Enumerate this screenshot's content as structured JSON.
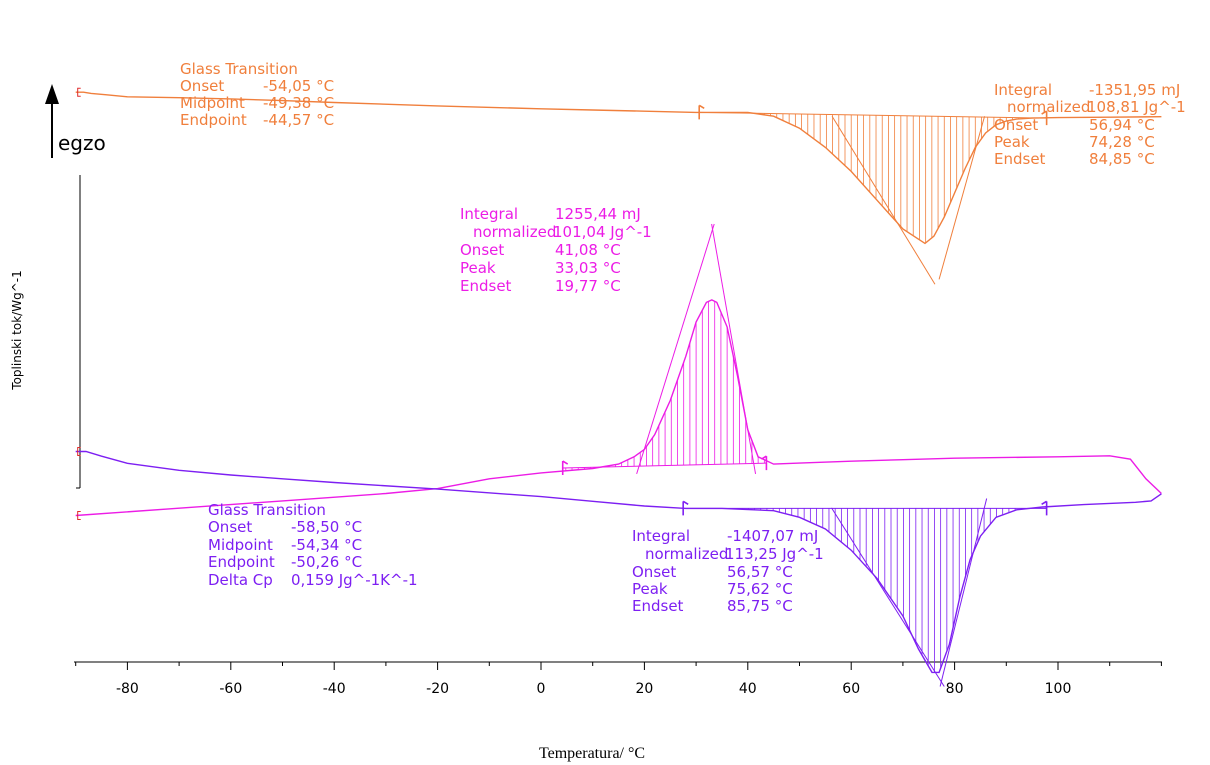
{
  "chart_data": {
    "type": "line",
    "xlabel": "Temperatura/ °C",
    "ylabel": "Toplinski tok/Wg^-1",
    "exo_label": "egzo",
    "xlim": [
      -90,
      120
    ],
    "x_ticks": [
      -80,
      -60,
      -40,
      -20,
      0,
      20,
      40,
      60,
      80,
      100
    ],
    "grid": false,
    "colors": {
      "top": "#f07f3c",
      "middle": "#ec1ce6",
      "bottom": "#7d1ff2"
    },
    "series": [
      {
        "key": "top",
        "points": [
          [
            -90,
            6.0
          ],
          [
            -88.5,
            6.0
          ],
          [
            -87,
            5.75
          ],
          [
            -84,
            5.45
          ],
          [
            -80,
            5.05
          ],
          [
            -70,
            4.85
          ],
          [
            -60,
            4.6
          ],
          [
            -50,
            4.25
          ],
          [
            -40,
            3.85
          ],
          [
            -20,
            3.15
          ],
          [
            0,
            2.55
          ],
          [
            10,
            2.3
          ],
          [
            20,
            2.05
          ],
          [
            30,
            1.8
          ],
          [
            40,
            1.8
          ],
          [
            45,
            1.0
          ],
          [
            50,
            -1.5
          ],
          [
            55,
            -5.5
          ],
          [
            60,
            -10.5
          ],
          [
            65,
            -16.5
          ],
          [
            70,
            -22.5
          ],
          [
            74.28,
            -25.5
          ],
          [
            76,
            -24
          ],
          [
            78,
            -20
          ],
          [
            80,
            -15
          ],
          [
            82,
            -10
          ],
          [
            84,
            -5.5
          ],
          [
            86,
            -2.5
          ],
          [
            88,
            -0.8
          ],
          [
            90,
            0
          ],
          [
            92,
            0.4
          ],
          [
            95,
            0.6
          ],
          [
            100,
            0.7
          ],
          [
            110,
            0.8
          ],
          [
            120,
            0.9
          ]
        ],
        "baseline": [
          [
            30.6,
            1.8
          ],
          [
            97.8,
            0.6
          ]
        ],
        "tangents": [
          [
            [
              56.3,
              1.0
            ],
            [
              76.2,
              -34.0
            ]
          ],
          [
            [
              77.0,
              -33.0
            ],
            [
              85.8,
              1.0
            ]
          ]
        ]
      },
      {
        "key": "middle",
        "points": [
          [
            -90,
            -19.5
          ],
          [
            -70,
            -18.0
          ],
          [
            -50,
            -16.5
          ],
          [
            -30,
            -15.0
          ],
          [
            -20,
            -14.0
          ],
          [
            -10,
            -12.0
          ],
          [
            0,
            -10.8
          ],
          [
            10,
            -9.9
          ],
          [
            15,
            -9.0
          ],
          [
            18,
            -7.5
          ],
          [
            20,
            -6.0
          ],
          [
            22,
            -3.0
          ],
          [
            25,
            4.0
          ],
          [
            28,
            13.0
          ],
          [
            30,
            20.0
          ],
          [
            32,
            24.0
          ],
          [
            33.03,
            24.5
          ],
          [
            34,
            24.0
          ],
          [
            36,
            19.0
          ],
          [
            38,
            9.0
          ],
          [
            40,
            -2.0
          ],
          [
            42,
            -7.5
          ],
          [
            45,
            -9.0
          ],
          [
            50,
            -8.8
          ],
          [
            60,
            -8.4
          ],
          [
            70,
            -8.1
          ],
          [
            80,
            -7.8
          ],
          [
            100,
            -7.5
          ],
          [
            110,
            -7.3
          ],
          [
            114,
            -8.0
          ],
          [
            117,
            -12.0
          ],
          [
            120,
            -15.0
          ]
        ],
        "baseline": [
          [
            4.2,
            -9.8
          ],
          [
            43.6,
            -8.8
          ]
        ],
        "tangents": [
          [
            [
              18.5,
              -11.0
            ],
            [
              33.5,
              40.0
            ]
          ],
          [
            [
              33.0,
              40.0
            ],
            [
              41.5,
              -11.0
            ]
          ]
        ]
      },
      {
        "key": "bottom",
        "points": [
          [
            -90,
            5.0
          ],
          [
            -88,
            5.0
          ],
          [
            -85,
            4.0
          ],
          [
            -80,
            2.5
          ],
          [
            -70,
            1.0
          ],
          [
            -60,
            0.0
          ],
          [
            -50,
            -0.8
          ],
          [
            -40,
            -1.6
          ],
          [
            -20,
            -3.0
          ],
          [
            0,
            -4.6
          ],
          [
            10,
            -5.6
          ],
          [
            20,
            -6.6
          ],
          [
            28,
            -7.1
          ],
          [
            35,
            -7.1
          ],
          [
            45,
            -7.6
          ],
          [
            50,
            -9.0
          ],
          [
            55,
            -11.5
          ],
          [
            60,
            -16.0
          ],
          [
            65,
            -22.0
          ],
          [
            70,
            -30.0
          ],
          [
            73,
            -37.0
          ],
          [
            75.62,
            -42.0
          ],
          [
            77,
            -42.0
          ],
          [
            79,
            -36.0
          ],
          [
            81,
            -26.0
          ],
          [
            83,
            -18.0
          ],
          [
            85,
            -13.0
          ],
          [
            88,
            -9.0
          ],
          [
            92,
            -7.4
          ],
          [
            97,
            -6.8
          ],
          [
            105,
            -6.3
          ],
          [
            115,
            -5.8
          ],
          [
            118,
            -5.5
          ],
          [
            120,
            -4.0
          ]
        ],
        "baseline": [
          [
            27.5,
            -7.1
          ],
          [
            97.8,
            -7.1
          ]
        ],
        "tangents": [
          [
            [
              56.2,
              -7.0
            ],
            [
              78.0,
              -45.0
            ]
          ],
          [
            [
              77.2,
              -45.0
            ],
            [
              86.2,
              -5.0
            ]
          ]
        ]
      }
    ],
    "annotations": {
      "top_glass": {
        "title": "Glass Transition",
        "onset_label": "Onset",
        "onset_value": "-54,05 °C",
        "mid_label": "Midpoint",
        "mid_value": "-49,38 °C",
        "end_label": "Endpoint",
        "end_value": "-44,57 °C"
      },
      "top_peak": {
        "integral_label": "Integral",
        "integral_value": "-1351,95 mJ",
        "norm_label": "normalized",
        "norm_value": "108,81 Jg^-1",
        "onset_label": "Onset",
        "onset_value": "56,94 °C",
        "peak_label": "Peak",
        "peak_value": "74,28 °C",
        "endset_label": "Endset",
        "endset_value": "84,85 °C"
      },
      "middle_peak": {
        "integral_label": "Integral",
        "integral_value": "1255,44 mJ",
        "norm_label": "normalized",
        "norm_value": "101,04 Jg^-1",
        "onset_label": "Onset",
        "onset_value": "41,08 °C",
        "peak_label": "Peak",
        "peak_value": "33,03 °C",
        "endset_label": "Endset",
        "endset_value": "19,77 °C"
      },
      "bottom_glass": {
        "title": "Glass Transition",
        "onset_label": "Onset",
        "onset_value": "-58,50 °C",
        "mid_label": "Midpoint",
        "mid_value": "-54,34 °C",
        "end_label": "Endpoint",
        "end_value": "-50,26 °C",
        "dcp_label": "Delta Cp",
        "dcp_value": "0,159 Jg^-1K^-1"
      },
      "bottom_peak": {
        "integral_label": "Integral",
        "integral_value": "-1407,07 mJ",
        "norm_label": "normalized",
        "norm_value": "113,25 Jg^-1",
        "onset_label": "Onset",
        "onset_value": "56,57 °C",
        "peak_label": "Peak",
        "peak_value": "75,62 °C",
        "endset_label": "Endset",
        "endset_value": "85,75 °C"
      }
    }
  }
}
